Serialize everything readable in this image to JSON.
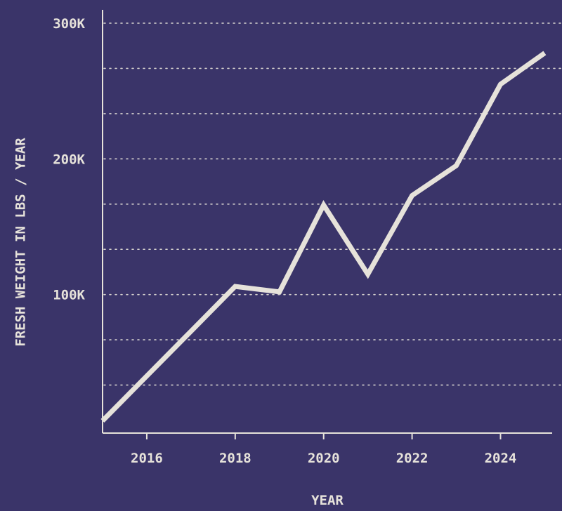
{
  "colors": {
    "background": "#3a3469",
    "line": "#e6e2da",
    "axis": "#e6e2da",
    "grid": "#e6e2da",
    "text": "#e6e2da"
  },
  "chart_data": {
    "type": "line",
    "x": [
      2015,
      2016,
      2017,
      2018,
      2019,
      2020,
      2021,
      2022,
      2023,
      2024,
      2025
    ],
    "series": [
      {
        "values": [
          7000,
          40000,
          73000,
          106000,
          102000,
          166000,
          115000,
          173000,
          195000,
          255000,
          278000
        ]
      }
    ],
    "xlabel": "YEAR",
    "ylabel": "FRESH WEIGHT IN LBS / YEAR",
    "xlim": [
      2015,
      2025.2
    ],
    "ylim": [
      0,
      300000
    ],
    "x_ticks": [
      2016,
      2018,
      2020,
      2022,
      2024
    ],
    "x_tick_labels": [
      "2016",
      "2018",
      "2020",
      "2022",
      "2024"
    ],
    "y_ticks": [
      100000,
      200000,
      300000
    ],
    "y_tick_labels": [
      "100K",
      "200K",
      "300K"
    ],
    "grid_y": [
      33333,
      66667,
      100000,
      133333,
      166667,
      200000,
      233333,
      266667,
      300000
    ],
    "grid": "dotted-horizontal",
    "legend": "none"
  }
}
